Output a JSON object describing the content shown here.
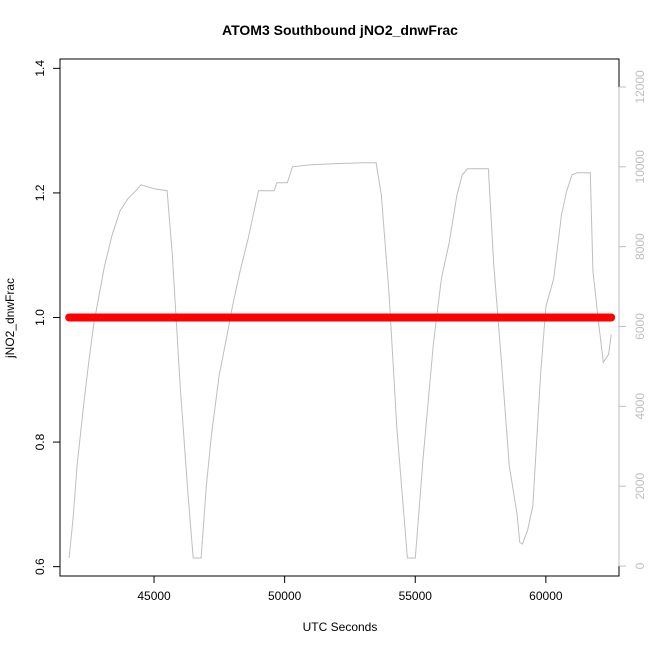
{
  "chart_data": {
    "type": "line",
    "title": "ATOM3 Southbound jNO2_dnwFrac",
    "xlabel": "UTC Seconds",
    "ylabel": "jNO2_dnwFrac",
    "xlim": [
      41400,
      62800
    ],
    "ylim": [
      0.585,
      1.415
    ],
    "y2lim": [
      -250,
      12700
    ],
    "x_ticks": [
      45000,
      50000,
      55000,
      60000
    ],
    "y_ticks": [
      0.6,
      0.8,
      1.0,
      1.2,
      1.4
    ],
    "y2_ticks": [
      0,
      2000,
      4000,
      6000,
      8000,
      10000,
      12000
    ],
    "grid": false,
    "legend": "none",
    "colors": {
      "primary_series": "#ff0000",
      "secondary_series": "#bebebe",
      "axes": "#000000"
    },
    "series": [
      {
        "axis": "left",
        "style": "thick-points",
        "x": [
          41750,
          62500
        ],
        "y": [
          1.0,
          1.0
        ]
      },
      {
        "axis": "right",
        "style": "thin-line",
        "x": [
          41750,
          41900,
          42050,
          42150,
          42300,
          42500,
          42700,
          42900,
          43100,
          43400,
          43700,
          44000,
          44300,
          44500,
          45000,
          45500,
          45700,
          46000,
          46300,
          46500,
          46800,
          47000,
          47200,
          47500,
          47800,
          48000,
          48300,
          48600,
          48800,
          49000,
          49600,
          49700,
          50100,
          50300,
          51000,
          52000,
          53000,
          53500,
          53700,
          54000,
          54300,
          54700,
          55000,
          55300,
          55700,
          56000,
          56300,
          56600,
          56800,
          57000,
          57800,
          58000,
          58300,
          58600,
          58900,
          59000,
          59100,
          59300,
          59500,
          59800,
          60000,
          60300,
          60600,
          60800,
          61000,
          61200,
          61700,
          61800,
          62000,
          62200,
          62400,
          62500
        ],
        "y": [
          200,
          1200,
          2500,
          3100,
          4000,
          5100,
          6100,
          6800,
          7500,
          8300,
          8900,
          9200,
          9400,
          9550,
          9450,
          9400,
          7800,
          4500,
          1800,
          200,
          200,
          2000,
          3300,
          4800,
          5800,
          6500,
          7400,
          8200,
          8800,
          9400,
          9400,
          9600,
          9600,
          10000,
          10050,
          10080,
          10100,
          10100,
          9300,
          6800,
          3400,
          200,
          200,
          2700,
          5600,
          7200,
          8100,
          9300,
          9800,
          9950,
          9950,
          7600,
          5100,
          2500,
          1300,
          600,
          550,
          900,
          1500,
          4800,
          6500,
          7200,
          8800,
          9400,
          9800,
          9850,
          9850,
          7400,
          6200,
          5100,
          5300,
          5800
        ]
      }
    ]
  }
}
